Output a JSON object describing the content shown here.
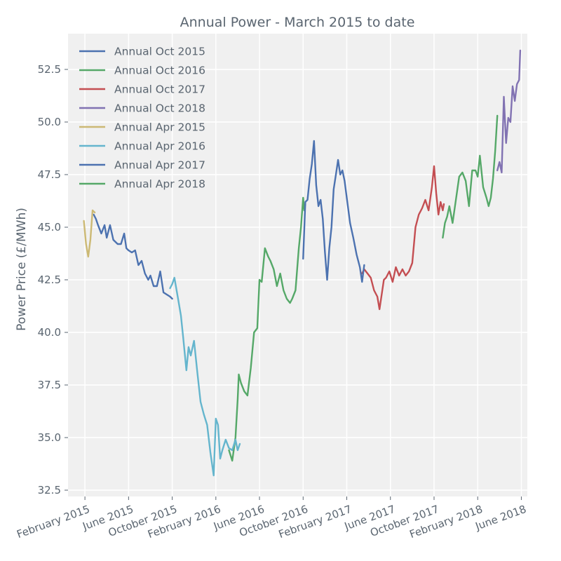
{
  "chart_data": {
    "type": "line",
    "title": "Annual Power - March 2015 to date",
    "xlabel": "",
    "ylabel": "Power Price (£/MWh)",
    "ylim": [
      32.2,
      54.2
    ],
    "yticks": [
      32.5,
      35.0,
      37.5,
      40.0,
      42.5,
      45.0,
      47.5,
      50.0,
      52.5
    ],
    "ytick_labels": [
      "32.5",
      "35.0",
      "37.5",
      "40.0",
      "42.5",
      "45.0",
      "47.5",
      "50.0",
      "52.5"
    ],
    "x_unit": "months since January 2015",
    "xlim": [
      -0.55,
      41.55
    ],
    "xticks": [
      1,
      5,
      9,
      13,
      17,
      21,
      25,
      29,
      33,
      37,
      41
    ],
    "xtick_labels": [
      "February 2015",
      "June 2015",
      "October 2015",
      "February 2016",
      "June 2016",
      "October 2016",
      "February 2017",
      "June 2017",
      "October 2017",
      "February 2018",
      "June 2018"
    ],
    "grid": true,
    "legend_position": "top-left",
    "series": [
      {
        "name": "Annual Oct 2015",
        "color": "#4c72b0",
        "x": [
          1.8,
          2.0,
          2.2,
          2.5,
          2.8,
          3.0,
          3.3,
          3.6,
          4.0,
          4.3,
          4.6,
          4.8,
          5.0,
          5.3,
          5.6,
          5.9,
          6.2,
          6.5,
          6.8,
          7.0,
          7.3,
          7.6,
          7.9,
          8.2,
          8.5,
          8.8,
          9.0
        ],
        "values": [
          45.6,
          45.4,
          45.1,
          44.7,
          45.1,
          44.5,
          45.1,
          44.4,
          44.2,
          44.2,
          44.7,
          44.0,
          43.9,
          43.8,
          43.9,
          43.2,
          43.4,
          42.8,
          42.5,
          42.7,
          42.2,
          42.2,
          42.9,
          41.9,
          41.8,
          41.7,
          41.6
        ]
      },
      {
        "name": "Annual Oct 2016",
        "color": "#55a868",
        "x": [
          14.2,
          14.5,
          14.8,
          15.0,
          15.1,
          15.3,
          15.6,
          15.9,
          16.2,
          16.5,
          16.8,
          17.0,
          17.2,
          17.5,
          17.8,
          18.0,
          18.3,
          18.6,
          18.9,
          19.2,
          19.5,
          19.8,
          20.0,
          20.3,
          20.6,
          20.8,
          21.0,
          21.1,
          21.2
        ],
        "values": [
          34.4,
          33.9,
          35.0,
          36.8,
          38.0,
          37.6,
          37.2,
          37.0,
          38.3,
          40.0,
          40.2,
          42.5,
          42.4,
          44.0,
          43.6,
          43.4,
          43.0,
          42.2,
          42.8,
          42.0,
          41.6,
          41.4,
          41.6,
          42.0,
          44.0,
          45.0,
          46.4,
          45.8,
          46.1
        ]
      },
      {
        "name": "Annual Oct 2017",
        "color": "#c44e52",
        "x": [
          26.4,
          26.6,
          26.9,
          27.2,
          27.5,
          27.8,
          28.0,
          28.2,
          28.4,
          28.6,
          28.9,
          29.2,
          29.5,
          29.8,
          30.1,
          30.4,
          30.7,
          31.0,
          31.3,
          31.6,
          31.9,
          32.2,
          32.5,
          32.8,
          33.0,
          33.2,
          33.4,
          33.6,
          33.8,
          33.9
        ],
        "values": [
          42.8,
          43.0,
          42.8,
          42.6,
          42.0,
          41.7,
          41.1,
          41.8,
          42.5,
          42.6,
          42.9,
          42.4,
          43.1,
          42.7,
          43.0,
          42.7,
          42.9,
          43.3,
          45.0,
          45.6,
          45.9,
          46.3,
          45.8,
          46.9,
          47.9,
          46.6,
          45.6,
          46.2,
          45.8,
          46.1
        ]
      },
      {
        "name": "Annual Oct 2018",
        "color": "#8172b2",
        "x": [
          38.8,
          39.0,
          39.2,
          39.4,
          39.6,
          39.8,
          40.0,
          40.2,
          40.4,
          40.6,
          40.8,
          40.9
        ],
        "values": [
          47.7,
          48.1,
          47.6,
          51.2,
          49.0,
          50.2,
          50.0,
          51.7,
          51.0,
          51.8,
          52.0,
          53.4
        ]
      },
      {
        "name": "Annual Apr 2015",
        "color": "#ccb974",
        "x": [
          0.9,
          1.1,
          1.3,
          1.5,
          1.7,
          1.9
        ],
        "values": [
          45.3,
          44.2,
          43.6,
          44.4,
          45.8,
          45.7
        ]
      },
      {
        "name": "Annual Apr 2016",
        "color": "#64b5cd",
        "x": [
          8.8,
          9.0,
          9.2,
          9.5,
          9.8,
          10.0,
          10.3,
          10.5,
          10.7,
          11.0,
          11.3,
          11.6,
          11.9,
          12.2,
          12.5,
          12.8,
          13.0,
          13.2,
          13.4,
          13.6,
          13.9,
          14.2,
          14.5,
          14.8,
          15.0,
          15.2
        ],
        "values": [
          42.1,
          42.3,
          42.6,
          41.7,
          40.8,
          39.8,
          38.2,
          39.3,
          38.9,
          39.6,
          38.1,
          36.7,
          36.1,
          35.6,
          34.3,
          33.2,
          35.9,
          35.6,
          34.0,
          34.4,
          34.9,
          34.5,
          34.4,
          34.9,
          34.4,
          34.7
        ]
      },
      {
        "name": "Annual Apr 2017",
        "color": "#4c72b0",
        "x": [
          21.0,
          21.2,
          21.4,
          21.6,
          21.8,
          22.0,
          22.2,
          22.4,
          22.6,
          22.8,
          23.0,
          23.2,
          23.4,
          23.6,
          23.8,
          24.0,
          24.2,
          24.4,
          24.6,
          24.8,
          25.0,
          25.3,
          25.6,
          25.9,
          26.2,
          26.4,
          26.6
        ],
        "values": [
          43.5,
          46.2,
          46.3,
          47.3,
          48.0,
          49.1,
          47.0,
          46.0,
          46.3,
          45.4,
          43.8,
          42.5,
          44.0,
          45.0,
          46.8,
          47.5,
          48.2,
          47.5,
          47.7,
          47.2,
          46.4,
          45.2,
          44.5,
          43.7,
          43.1,
          42.4,
          43.2
        ]
      },
      {
        "name": "Annual Apr 2018",
        "color": "#55a868",
        "x": [
          33.8,
          34.0,
          34.2,
          34.4,
          34.7,
          35.0,
          35.3,
          35.6,
          35.9,
          36.2,
          36.5,
          36.8,
          37.0,
          37.2,
          37.5,
          37.8,
          38.0,
          38.2,
          38.4,
          38.6,
          38.8
        ],
        "values": [
          44.5,
          45.2,
          45.5,
          46.0,
          45.2,
          46.3,
          47.4,
          47.6,
          47.2,
          46.0,
          47.7,
          47.7,
          47.4,
          48.4,
          46.9,
          46.4,
          46.0,
          46.4,
          47.3,
          48.6,
          50.3
        ]
      }
    ]
  }
}
